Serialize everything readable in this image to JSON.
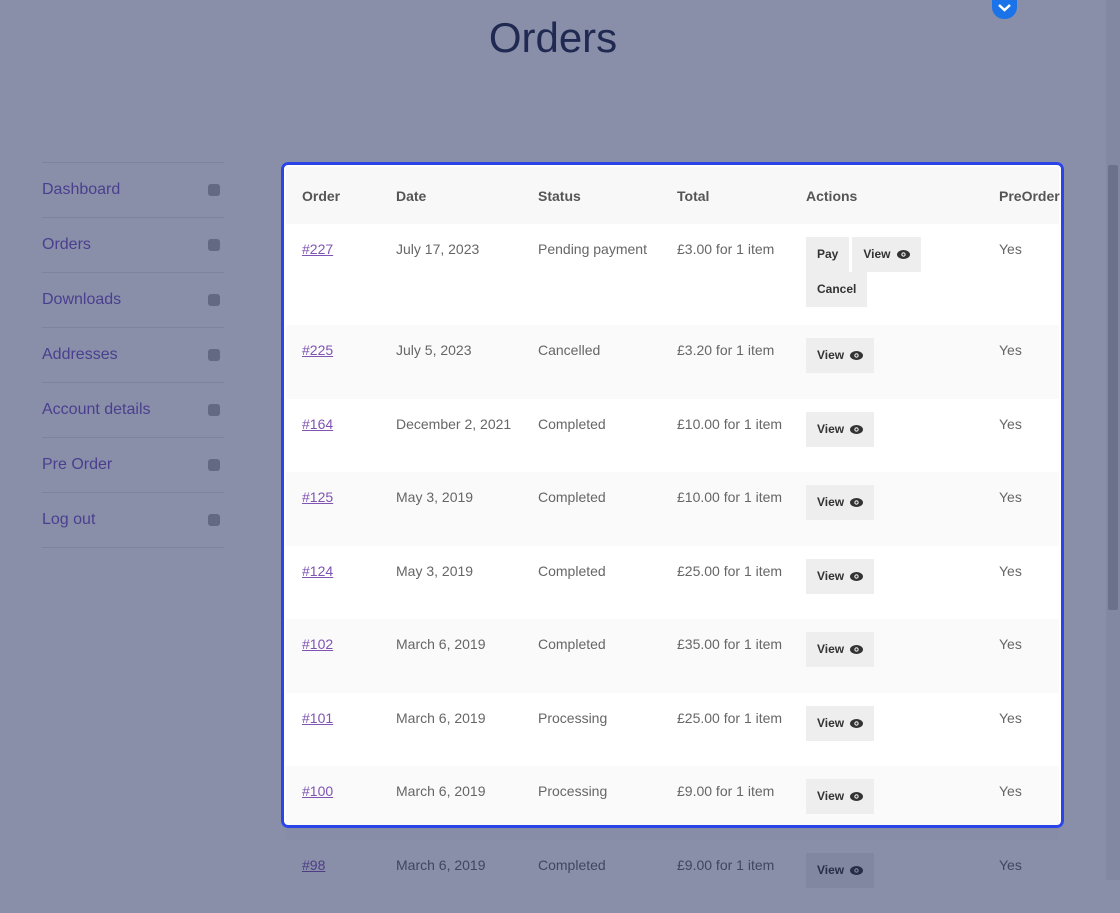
{
  "header": {
    "title": "Orders"
  },
  "nav": [
    "Dashboard",
    "Orders",
    "Downloads",
    "Addresses",
    "Account details",
    "Pre Order",
    "Log out"
  ],
  "table": {
    "headers": [
      "Order",
      "Date",
      "Status",
      "Total",
      "Actions",
      "PreOrder"
    ],
    "rows": [
      {
        "order": "#227",
        "date": "July 17, 2023",
        "status": "Pending payment",
        "total": "£3.00 for 1 item",
        "actions": [
          "Pay",
          "View",
          "Cancel"
        ],
        "preorder": "Yes"
      },
      {
        "order": "#225",
        "date": "July 5, 2023",
        "status": "Cancelled",
        "total": "£3.20 for 1 item",
        "actions": [
          "View"
        ],
        "preorder": "Yes"
      },
      {
        "order": "#164",
        "date": "December 2, 2021",
        "status": "Completed",
        "total": "£10.00 for 1 item",
        "actions": [
          "View"
        ],
        "preorder": "Yes"
      },
      {
        "order": "#125",
        "date": "May 3, 2019",
        "status": "Completed",
        "total": "£10.00 for 1 item",
        "actions": [
          "View"
        ],
        "preorder": "Yes"
      },
      {
        "order": "#124",
        "date": "May 3, 2019",
        "status": "Completed",
        "total": "£25.00 for 1 item",
        "actions": [
          "View"
        ],
        "preorder": "Yes"
      },
      {
        "order": "#102",
        "date": "March 6, 2019",
        "status": "Completed",
        "total": "£35.00 for 1 item",
        "actions": [
          "View"
        ],
        "preorder": "Yes"
      },
      {
        "order": "#101",
        "date": "March 6, 2019",
        "status": "Processing",
        "total": "£25.00 for 1 item",
        "actions": [
          "View"
        ],
        "preorder": "Yes"
      },
      {
        "order": "#100",
        "date": "March 6, 2019",
        "status": "Processing",
        "total": "£9.00 for 1 item",
        "actions": [
          "View"
        ],
        "preorder": "Yes"
      },
      {
        "order": "#98",
        "date": "March 6, 2019",
        "status": "Completed",
        "total": "£9.00 for 1 item",
        "actions": [
          "View"
        ],
        "preorder": "Yes"
      }
    ]
  }
}
